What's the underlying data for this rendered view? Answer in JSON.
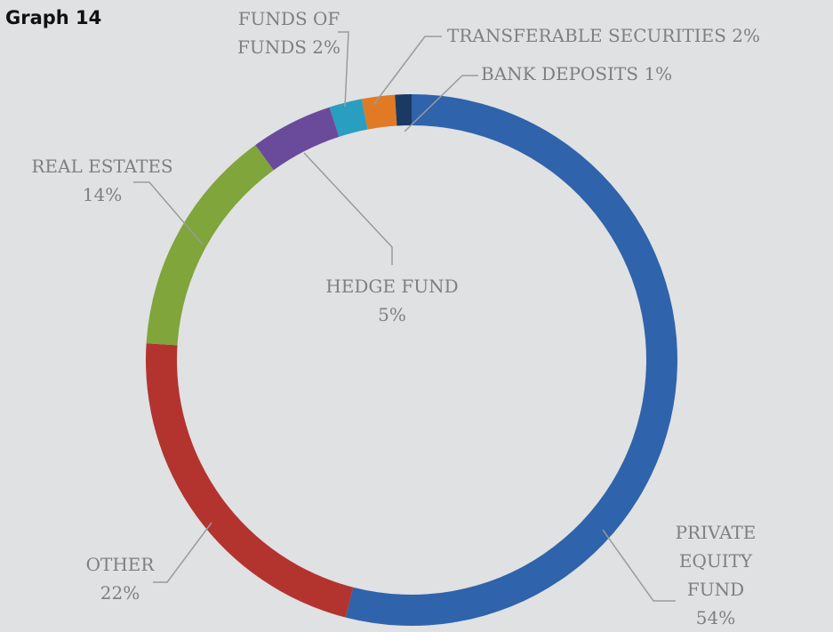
{
  "chart_data": {
    "type": "donut",
    "title": "Graph 14",
    "categories": [
      "PRIVATE EQUITY FUND",
      "OTHER",
      "REAL ESTATES",
      "HEDGE FUND",
      "FUNDS OF FUNDS",
      "TRANSFERABLE SECURITIES",
      "BANK DEPOSITS"
    ],
    "values": [
      54,
      22,
      14,
      5,
      2,
      2,
      1
    ],
    "value_labels": [
      "54%",
      "22%",
      "14%",
      "5%",
      "2%",
      "2%",
      "1%"
    ],
    "colors": [
      "#2f63ab",
      "#b3342f",
      "#7fa53b",
      "#6a4b9b",
      "#2a9ec0",
      "#e07a24",
      "#1b3a62"
    ]
  }
}
